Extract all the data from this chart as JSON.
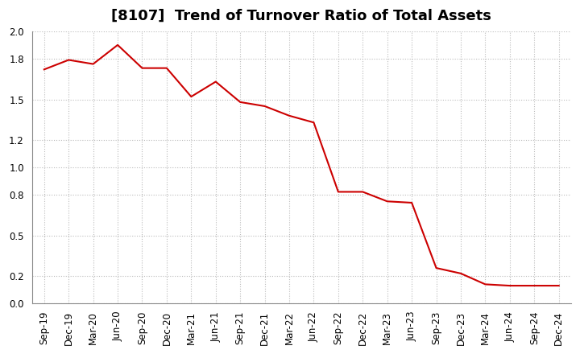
{
  "title": "[8107]  Trend of Turnover Ratio of Total Assets",
  "x_labels": [
    "Sep-19",
    "Dec-19",
    "Mar-20",
    "Jun-20",
    "Sep-20",
    "Dec-20",
    "Mar-21",
    "Jun-21",
    "Sep-21",
    "Dec-21",
    "Mar-22",
    "Jun-22",
    "Sep-22",
    "Dec-22",
    "Mar-23",
    "Jun-23",
    "Sep-23",
    "Dec-23",
    "Mar-24",
    "Jun-24",
    "Sep-24",
    "Dec-24"
  ],
  "y_values": [
    1.72,
    1.79,
    1.76,
    1.9,
    1.73,
    1.73,
    1.52,
    1.63,
    1.48,
    1.45,
    1.38,
    1.33,
    0.82,
    0.82,
    0.75,
    0.74,
    0.26,
    0.22,
    0.14,
    0.13,
    0.13,
    0.13
  ],
  "line_color": "#cc0000",
  "background_color": "#ffffff",
  "grid_color": "#bbbbbb",
  "ylim": [
    0.0,
    2.0
  ],
  "yticks": [
    0.0,
    0.2,
    0.5,
    0.8,
    1.0,
    1.2,
    1.5,
    1.8,
    2.0
  ],
  "title_fontsize": 13,
  "tick_fontsize": 8.5,
  "line_width": 1.5
}
